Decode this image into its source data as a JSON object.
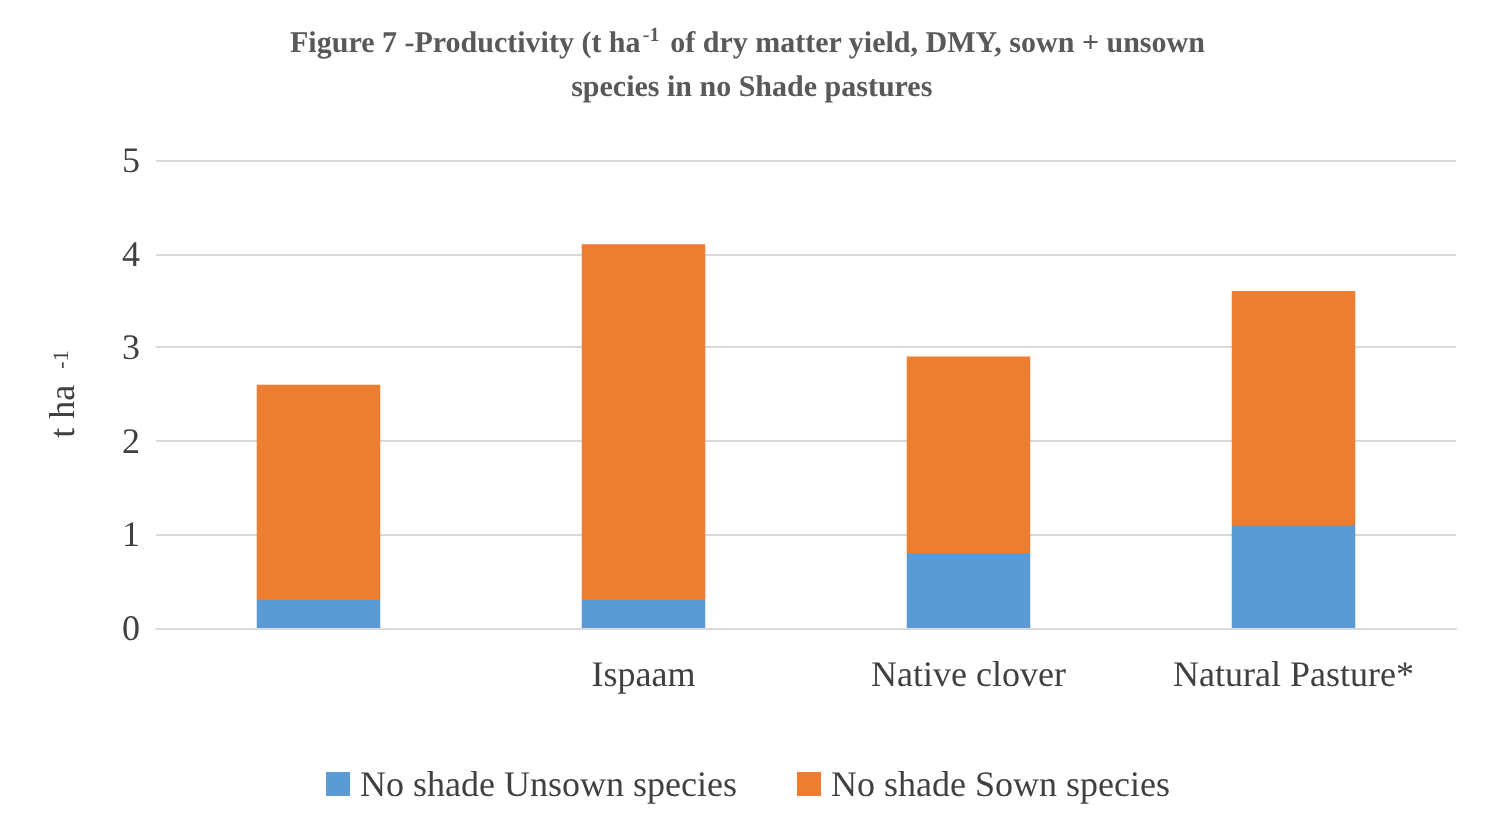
{
  "chart_data": {
    "type": "bar",
    "title": "Figure 7 -Productivity (t ha$^{-1}$ of dry matter yield, DMY, sown + unsown species in no Shade pastures",
    "ylabel": "t ha$^{-1}$",
    "categories": [
      null,
      "Ispaam",
      "Native clover",
      "Natural Pasture*"
    ],
    "stacked": true,
    "series": [
      {
        "name": "No shade Unsown species",
        "color": "#5b9bd5",
        "values": [
          0.3,
          0.3,
          0.8,
          1.1
        ]
      },
      {
        "name": "No shade Sown species",
        "color": "#ed7d31",
        "values": [
          2.3,
          3.8,
          2.1,
          2.5
        ]
      }
    ],
    "ylim": [
      0,
      5
    ],
    "yticks": [
      0,
      1,
      2,
      3,
      4,
      5
    ],
    "grid": "y",
    "legend": "bottom"
  }
}
